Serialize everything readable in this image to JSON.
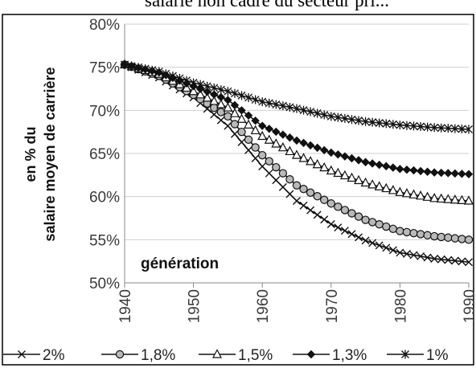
{
  "header_text": "salarié non cadre du secteur pri...",
  "chart_data": {
    "type": "line",
    "ylabel_line1": "en % du",
    "ylabel_line2": "salaire moyen de carrière",
    "annotation": "génération",
    "ylim": [
      50,
      80
    ],
    "xlim": [
      1940,
      1990
    ],
    "yticks": [
      50,
      55,
      60,
      65,
      70,
      75,
      80
    ],
    "ytick_labels": [
      "50%",
      "55%",
      "60%",
      "65%",
      "70%",
      "75%",
      "80%"
    ],
    "xticks": [
      1940,
      1950,
      1960,
      1970,
      1980,
      1990
    ],
    "xtick_labels": [
      "1940",
      "1950",
      "1960",
      "1970",
      "1980",
      "1990"
    ],
    "grid": "horizontal",
    "legend_position": "bottom",
    "series": [
      {
        "name": "2%",
        "marker": "x",
        "x": [
          1940,
          1945,
          1950,
          1955,
          1960,
          1965,
          1970,
          1975,
          1980,
          1985,
          1990
        ],
        "y": [
          75.3,
          73.8,
          71.5,
          68.2,
          63.5,
          59.5,
          56.8,
          54.9,
          53.5,
          52.8,
          52.4
        ]
      },
      {
        "name": "1,8%",
        "marker": "circle",
        "x": [
          1940,
          1945,
          1950,
          1955,
          1960,
          1965,
          1970,
          1975,
          1980,
          1985,
          1990
        ],
        "y": [
          75.3,
          74.0,
          71.8,
          69.3,
          64.8,
          61.3,
          59.2,
          57.3,
          56.0,
          55.4,
          55.0
        ]
      },
      {
        "name": "1,5%",
        "marker": "triangle",
        "x": [
          1940,
          1945,
          1950,
          1955,
          1960,
          1965,
          1970,
          1975,
          1980,
          1985,
          1990
        ],
        "y": [
          75.3,
          74.2,
          72.2,
          70.3,
          67.0,
          64.8,
          63.0,
          61.6,
          60.5,
          59.8,
          59.5
        ]
      },
      {
        "name": "1,3%",
        "marker": "diamond",
        "x": [
          1940,
          1945,
          1950,
          1955,
          1960,
          1965,
          1970,
          1975,
          1980,
          1985,
          1990
        ],
        "y": [
          75.3,
          74.4,
          72.8,
          71.2,
          68.2,
          66.5,
          65.1,
          64.0,
          63.2,
          62.8,
          62.6
        ]
      },
      {
        "name": "1%",
        "marker": "star",
        "x": [
          1940,
          1945,
          1950,
          1955,
          1960,
          1965,
          1970,
          1975,
          1980,
          1985,
          1990
        ],
        "y": [
          75.3,
          74.5,
          73.2,
          72.2,
          71.0,
          70.2,
          69.3,
          68.7,
          68.3,
          68.0,
          67.8
        ]
      }
    ]
  }
}
